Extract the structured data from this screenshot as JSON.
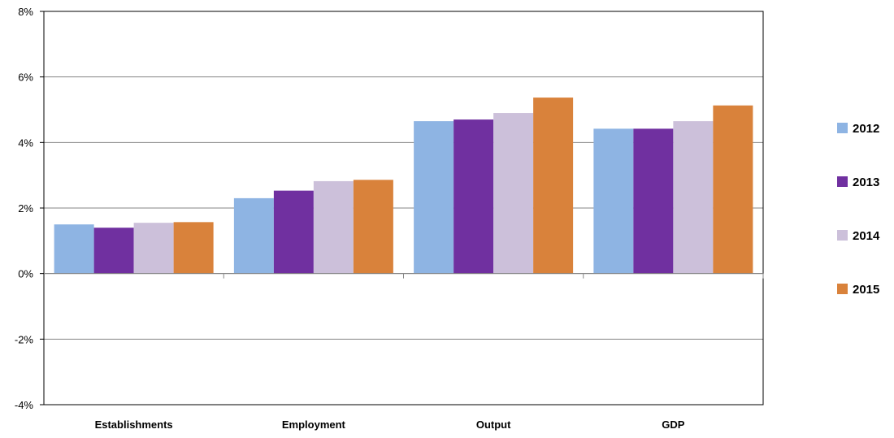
{
  "chart_data": {
    "type": "bar",
    "title": "",
    "xlabel": "",
    "ylabel": "",
    "categories": [
      "Establishments",
      "Employment",
      "Output",
      "GDP"
    ],
    "series": [
      {
        "name": "2012",
        "color": "#8EB4E3",
        "values": [
          1.5,
          2.3,
          4.65,
          4.42
        ]
      },
      {
        "name": "2013",
        "color": "#7030A0",
        "values": [
          1.4,
          2.53,
          4.7,
          4.42
        ]
      },
      {
        "name": "2014",
        "color": "#CCC0DA",
        "values": [
          1.55,
          2.82,
          4.9,
          4.65
        ]
      },
      {
        "name": "2015",
        "color": "#D9823B",
        "values": [
          1.57,
          2.86,
          5.37,
          5.13
        ]
      }
    ],
    "ylim": [
      -4,
      8
    ],
    "yticks": [
      -4,
      -2,
      0,
      2,
      4,
      6,
      8
    ],
    "ytick_labels": [
      "-4%",
      "-2%",
      "0%",
      "2%",
      "4%",
      "6%",
      "8%"
    ],
    "grid": true,
    "legend_position": "right"
  }
}
